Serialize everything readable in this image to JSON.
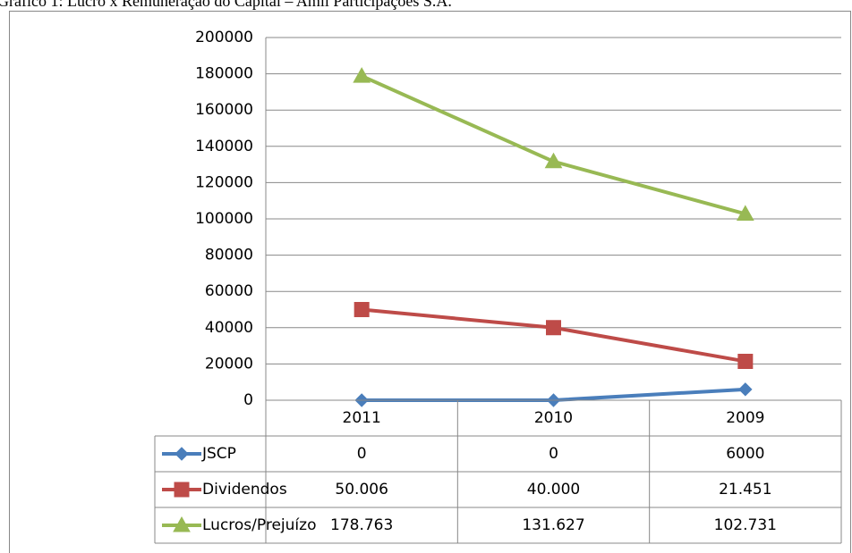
{
  "chart_data": {
    "type": "line",
    "title": "Gráfico 1: Lucro x Remuneração do Capital – Amil Participações S.A.",
    "categories": [
      "2011",
      "2010",
      "2009"
    ],
    "series": [
      {
        "name": "JSCP",
        "color": "#4a7ebb",
        "marker": "diamond",
        "values": [
          0,
          0,
          6000
        ]
      },
      {
        "name": "Dividendos",
        "color": "#be4b48",
        "marker": "square",
        "values": [
          50006,
          40000,
          21451
        ],
        "value_labels": [
          "50.006",
          "40.000",
          "21.451"
        ]
      },
      {
        "name": "Lucros/Prejuízo",
        "color": "#98b954",
        "marker": "triangle",
        "values": [
          178763,
          131627,
          102731
        ],
        "value_labels": [
          "178.763",
          "131.627",
          "102.731"
        ]
      }
    ],
    "ylim": [
      0,
      200000
    ],
    "yticks": [
      0,
      20000,
      40000,
      60000,
      80000,
      100000,
      120000,
      140000,
      160000,
      180000,
      200000
    ],
    "grid": true,
    "data_table": true
  }
}
